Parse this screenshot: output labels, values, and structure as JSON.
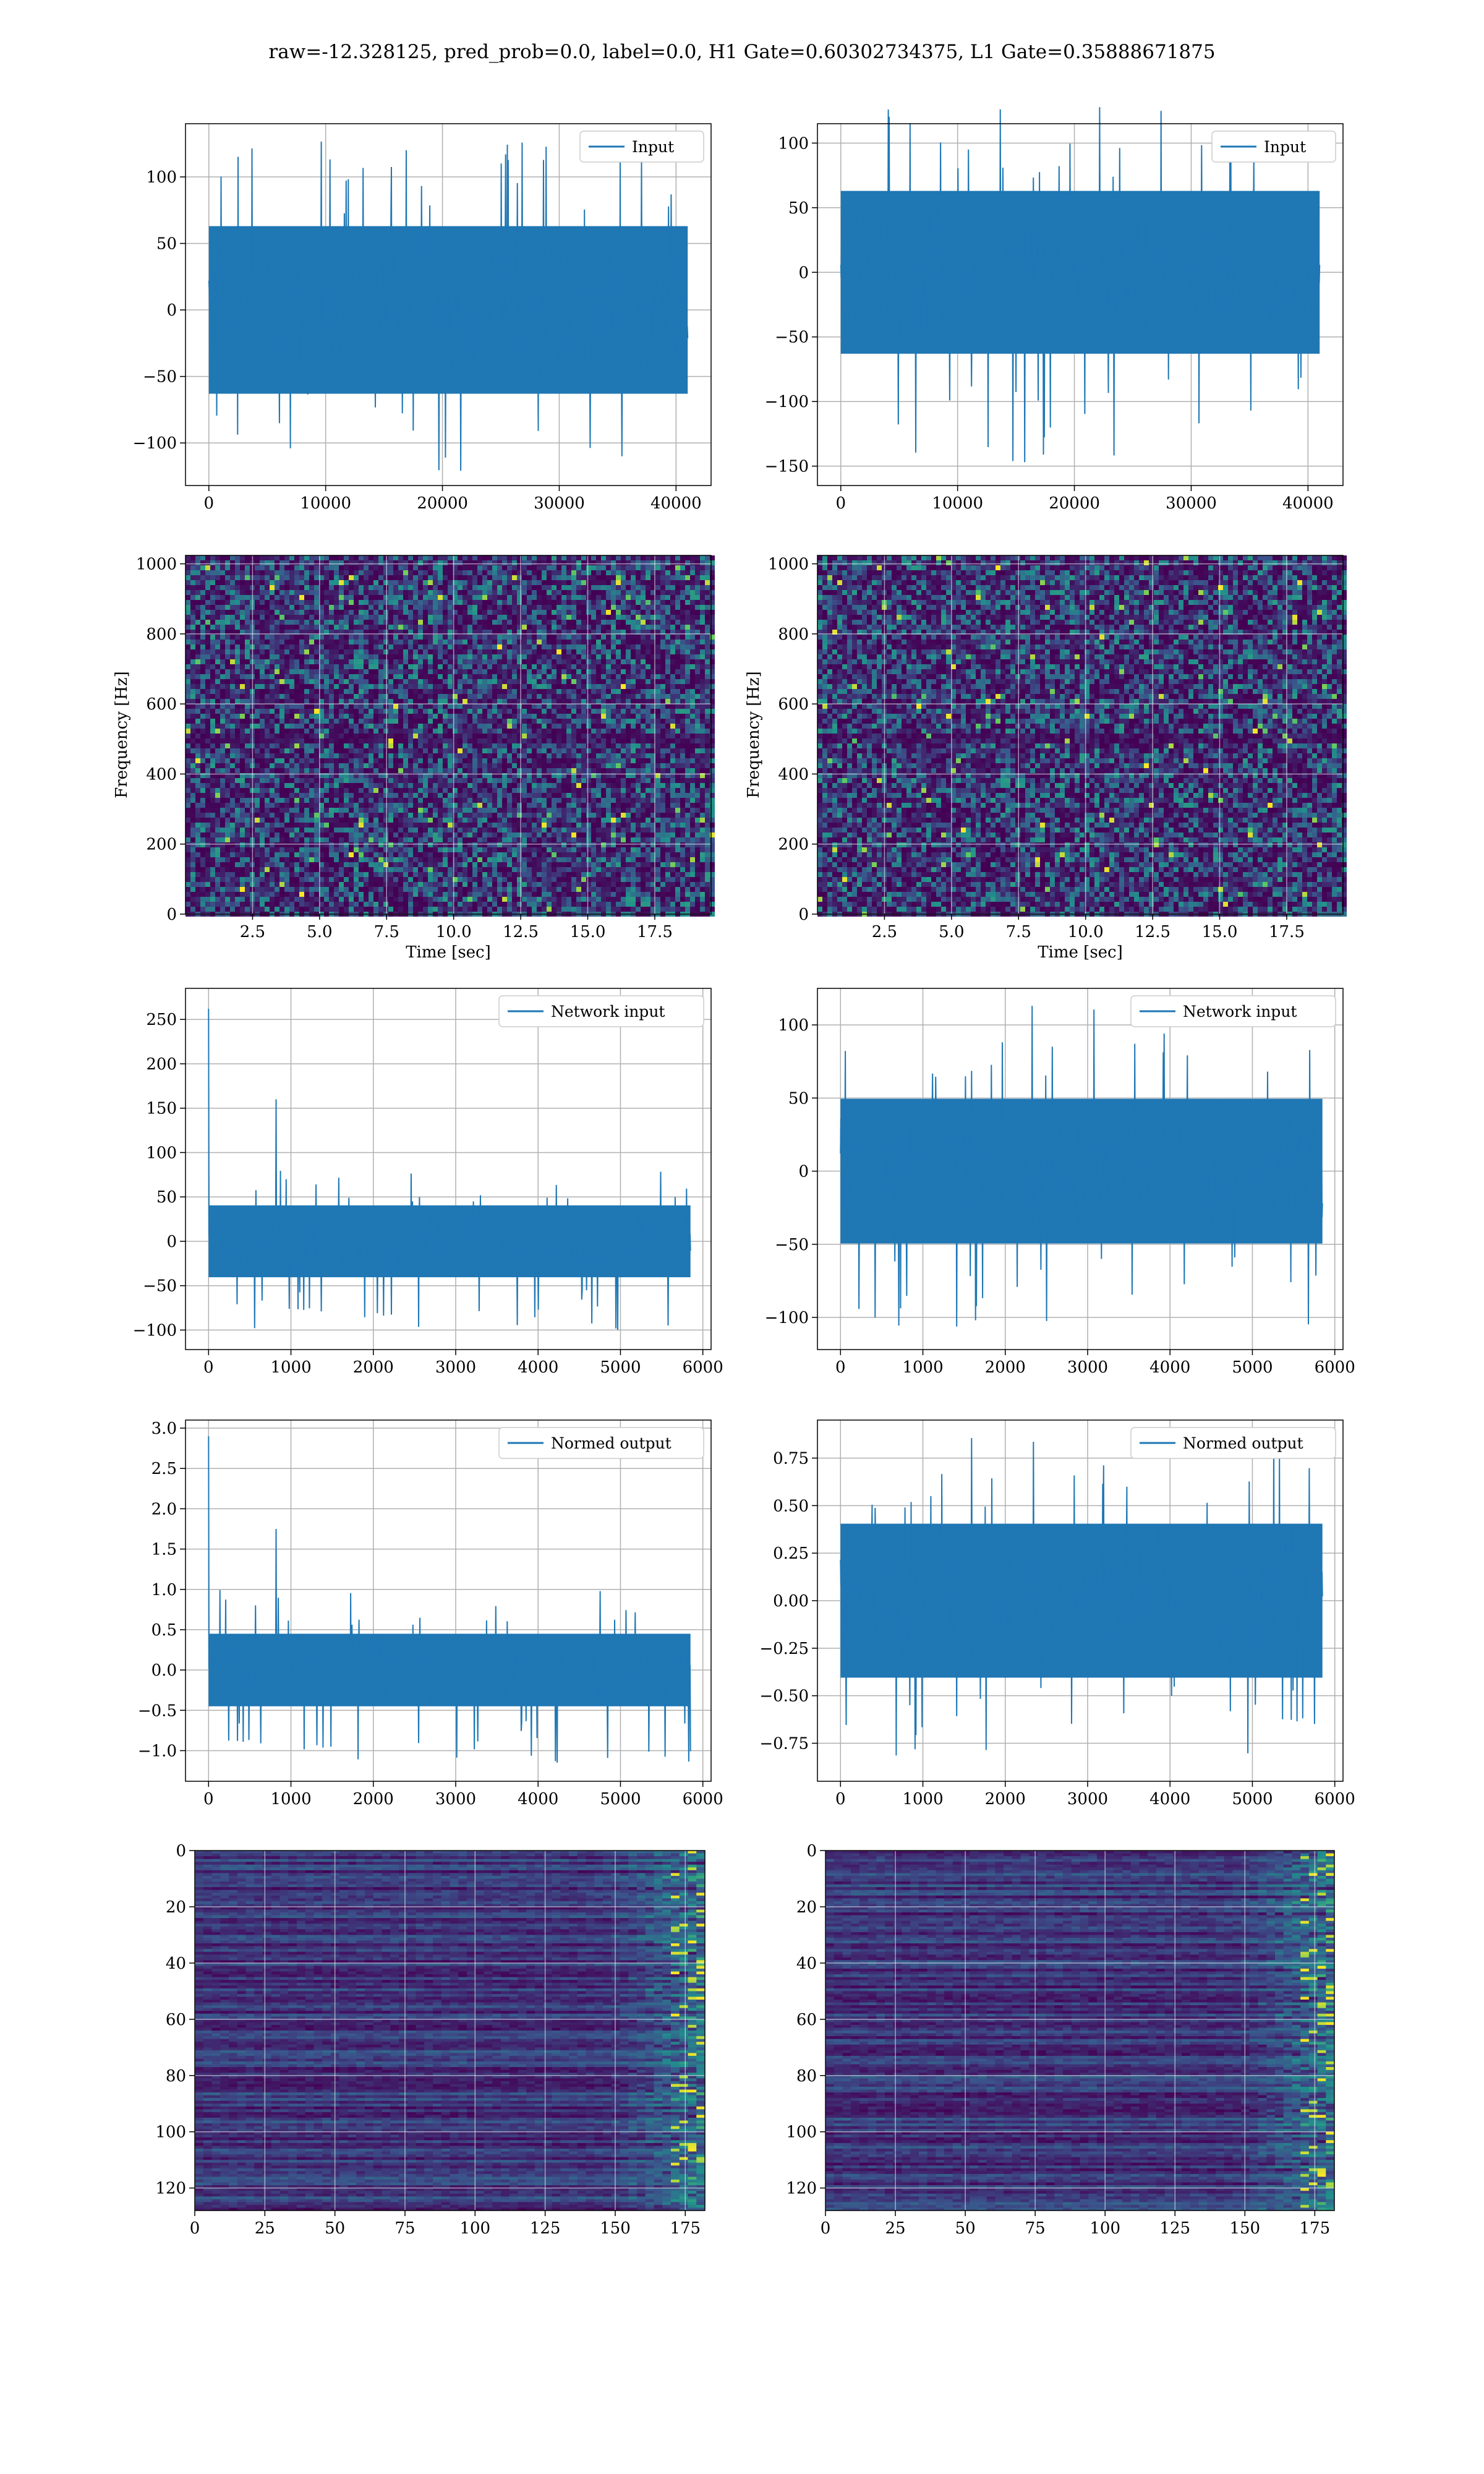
{
  "suptitle": "raw=-12.328125, pred_prob=0.0, label=0.0, H1 Gate=0.60302734375, L1 Gate=0.35888671875",
  "colors": {
    "line": "#1f77b4",
    "grid": "#b0b0b0",
    "viridis_dark": "#440154",
    "viridis_mid": "#21918c",
    "viridis_bright": "#fde725"
  },
  "chart_data": [
    {
      "type": "line",
      "legend": "Input",
      "legend_position": "upper right",
      "xlim": [
        -2000,
        43000
      ],
      "ylim": [
        -132,
        140
      ],
      "xticks": [
        0,
        10000,
        20000,
        30000,
        40000
      ],
      "yticks": [
        -100,
        -50,
        0,
        50,
        100
      ],
      "x_range": [
        0,
        41000
      ],
      "envelope": [
        -70,
        70
      ],
      "spike_min": -125,
      "spike_max": 128,
      "grid": true
    },
    {
      "type": "line",
      "legend": "Input",
      "legend_position": "upper right",
      "xlim": [
        -2000,
        43000
      ],
      "ylim": [
        -165,
        115
      ],
      "xticks": [
        0,
        10000,
        20000,
        30000,
        40000
      ],
      "yticks": [
        -150,
        -100,
        -50,
        0,
        50,
        100
      ],
      "x_range": [
        0,
        41000
      ],
      "envelope": [
        -70,
        70
      ],
      "spike_min": -148,
      "spike_max": 130,
      "grid": true
    },
    {
      "type": "heatmap",
      "xlabel": "Time [sec]",
      "ylabel": "Frequency [Hz]",
      "xlim": [
        0,
        19.6
      ],
      "ylim": [
        0,
        1024
      ],
      "xticks": [
        2.5,
        5.0,
        7.5,
        10.0,
        12.5,
        15.0,
        17.5
      ],
      "yticks": [
        0,
        200,
        400,
        600,
        800,
        1000
      ],
      "colormap": "viridis",
      "grid": true
    },
    {
      "type": "heatmap",
      "xlabel": "Time [sec]",
      "ylabel": "Frequency [Hz]",
      "xlim": [
        0,
        19.6
      ],
      "ylim": [
        0,
        1024
      ],
      "xticks": [
        2.5,
        5.0,
        7.5,
        10.0,
        12.5,
        15.0,
        17.5
      ],
      "yticks": [
        0,
        200,
        400,
        600,
        800,
        1000
      ],
      "colormap": "viridis",
      "grid": true
    },
    {
      "type": "line",
      "legend": "Network input",
      "legend_position": "upper right",
      "xlim": [
        -280,
        6100
      ],
      "ylim": [
        -122,
        285
      ],
      "xticks": [
        0,
        1000,
        2000,
        3000,
        4000,
        5000,
        6000
      ],
      "yticks": [
        -100,
        -50,
        0,
        50,
        100,
        150,
        200,
        250
      ],
      "x_range": [
        0,
        5850
      ],
      "envelope": [
        -45,
        45
      ],
      "spike_min": -100,
      "spike_max": 80,
      "peaks": [
        [
          0,
          262
        ],
        [
          820,
          160
        ]
      ],
      "grid": true
    },
    {
      "type": "line",
      "legend": "Network input",
      "legend_position": "upper right",
      "xlim": [
        -280,
        6100
      ],
      "ylim": [
        -122,
        125
      ],
      "xticks": [
        0,
        1000,
        2000,
        3000,
        4000,
        5000,
        6000
      ],
      "yticks": [
        -100,
        -50,
        0,
        50,
        100
      ],
      "x_range": [
        0,
        5850
      ],
      "envelope": [
        -55,
        55
      ],
      "spike_min": -107,
      "spike_max": 115,
      "grid": true
    },
    {
      "type": "line",
      "legend": "Normed output",
      "legend_position": "upper right",
      "xlim": [
        -280,
        6100
      ],
      "ylim": [
        -1.38,
        3.1
      ],
      "xticks": [
        0,
        1000,
        2000,
        3000,
        4000,
        5000,
        6000
      ],
      "yticks": [
        -1.0,
        -0.5,
        0.0,
        0.5,
        1.0,
        1.5,
        2.0,
        2.5,
        3.0
      ],
      "x_range": [
        0,
        5850
      ],
      "envelope": [
        -0.5,
        0.5
      ],
      "spike_min": -1.15,
      "spike_max": 1.0,
      "peaks": [
        [
          0,
          2.9
        ],
        [
          820,
          1.75
        ]
      ],
      "grid": true
    },
    {
      "type": "line",
      "legend": "Normed output",
      "legend_position": "upper right",
      "xlim": [
        -280,
        6100
      ],
      "ylim": [
        -0.95,
        0.95
      ],
      "xticks": [
        0,
        1000,
        2000,
        3000,
        4000,
        5000,
        6000
      ],
      "yticks": [
        -0.75,
        -0.5,
        -0.25,
        0.0,
        0.25,
        0.5,
        0.75
      ],
      "x_range": [
        0,
        5850
      ],
      "envelope": [
        -0.45,
        0.45
      ],
      "spike_min": -0.82,
      "spike_max": 0.87,
      "grid": true
    },
    {
      "type": "heatmap",
      "xlim": [
        0,
        182
      ],
      "ylim": [
        128,
        0
      ],
      "xticks": [
        0,
        25,
        50,
        75,
        100,
        125,
        150,
        175
      ],
      "yticks": [
        0,
        20,
        40,
        60,
        80,
        100,
        120
      ],
      "colormap": "viridis",
      "grid": true
    },
    {
      "type": "heatmap",
      "xlim": [
        0,
        182
      ],
      "ylim": [
        128,
        0
      ],
      "xticks": [
        0,
        25,
        50,
        75,
        100,
        125,
        150,
        175
      ],
      "yticks": [
        0,
        20,
        40,
        60,
        80,
        100,
        120
      ],
      "colormap": "viridis",
      "grid": true
    }
  ]
}
